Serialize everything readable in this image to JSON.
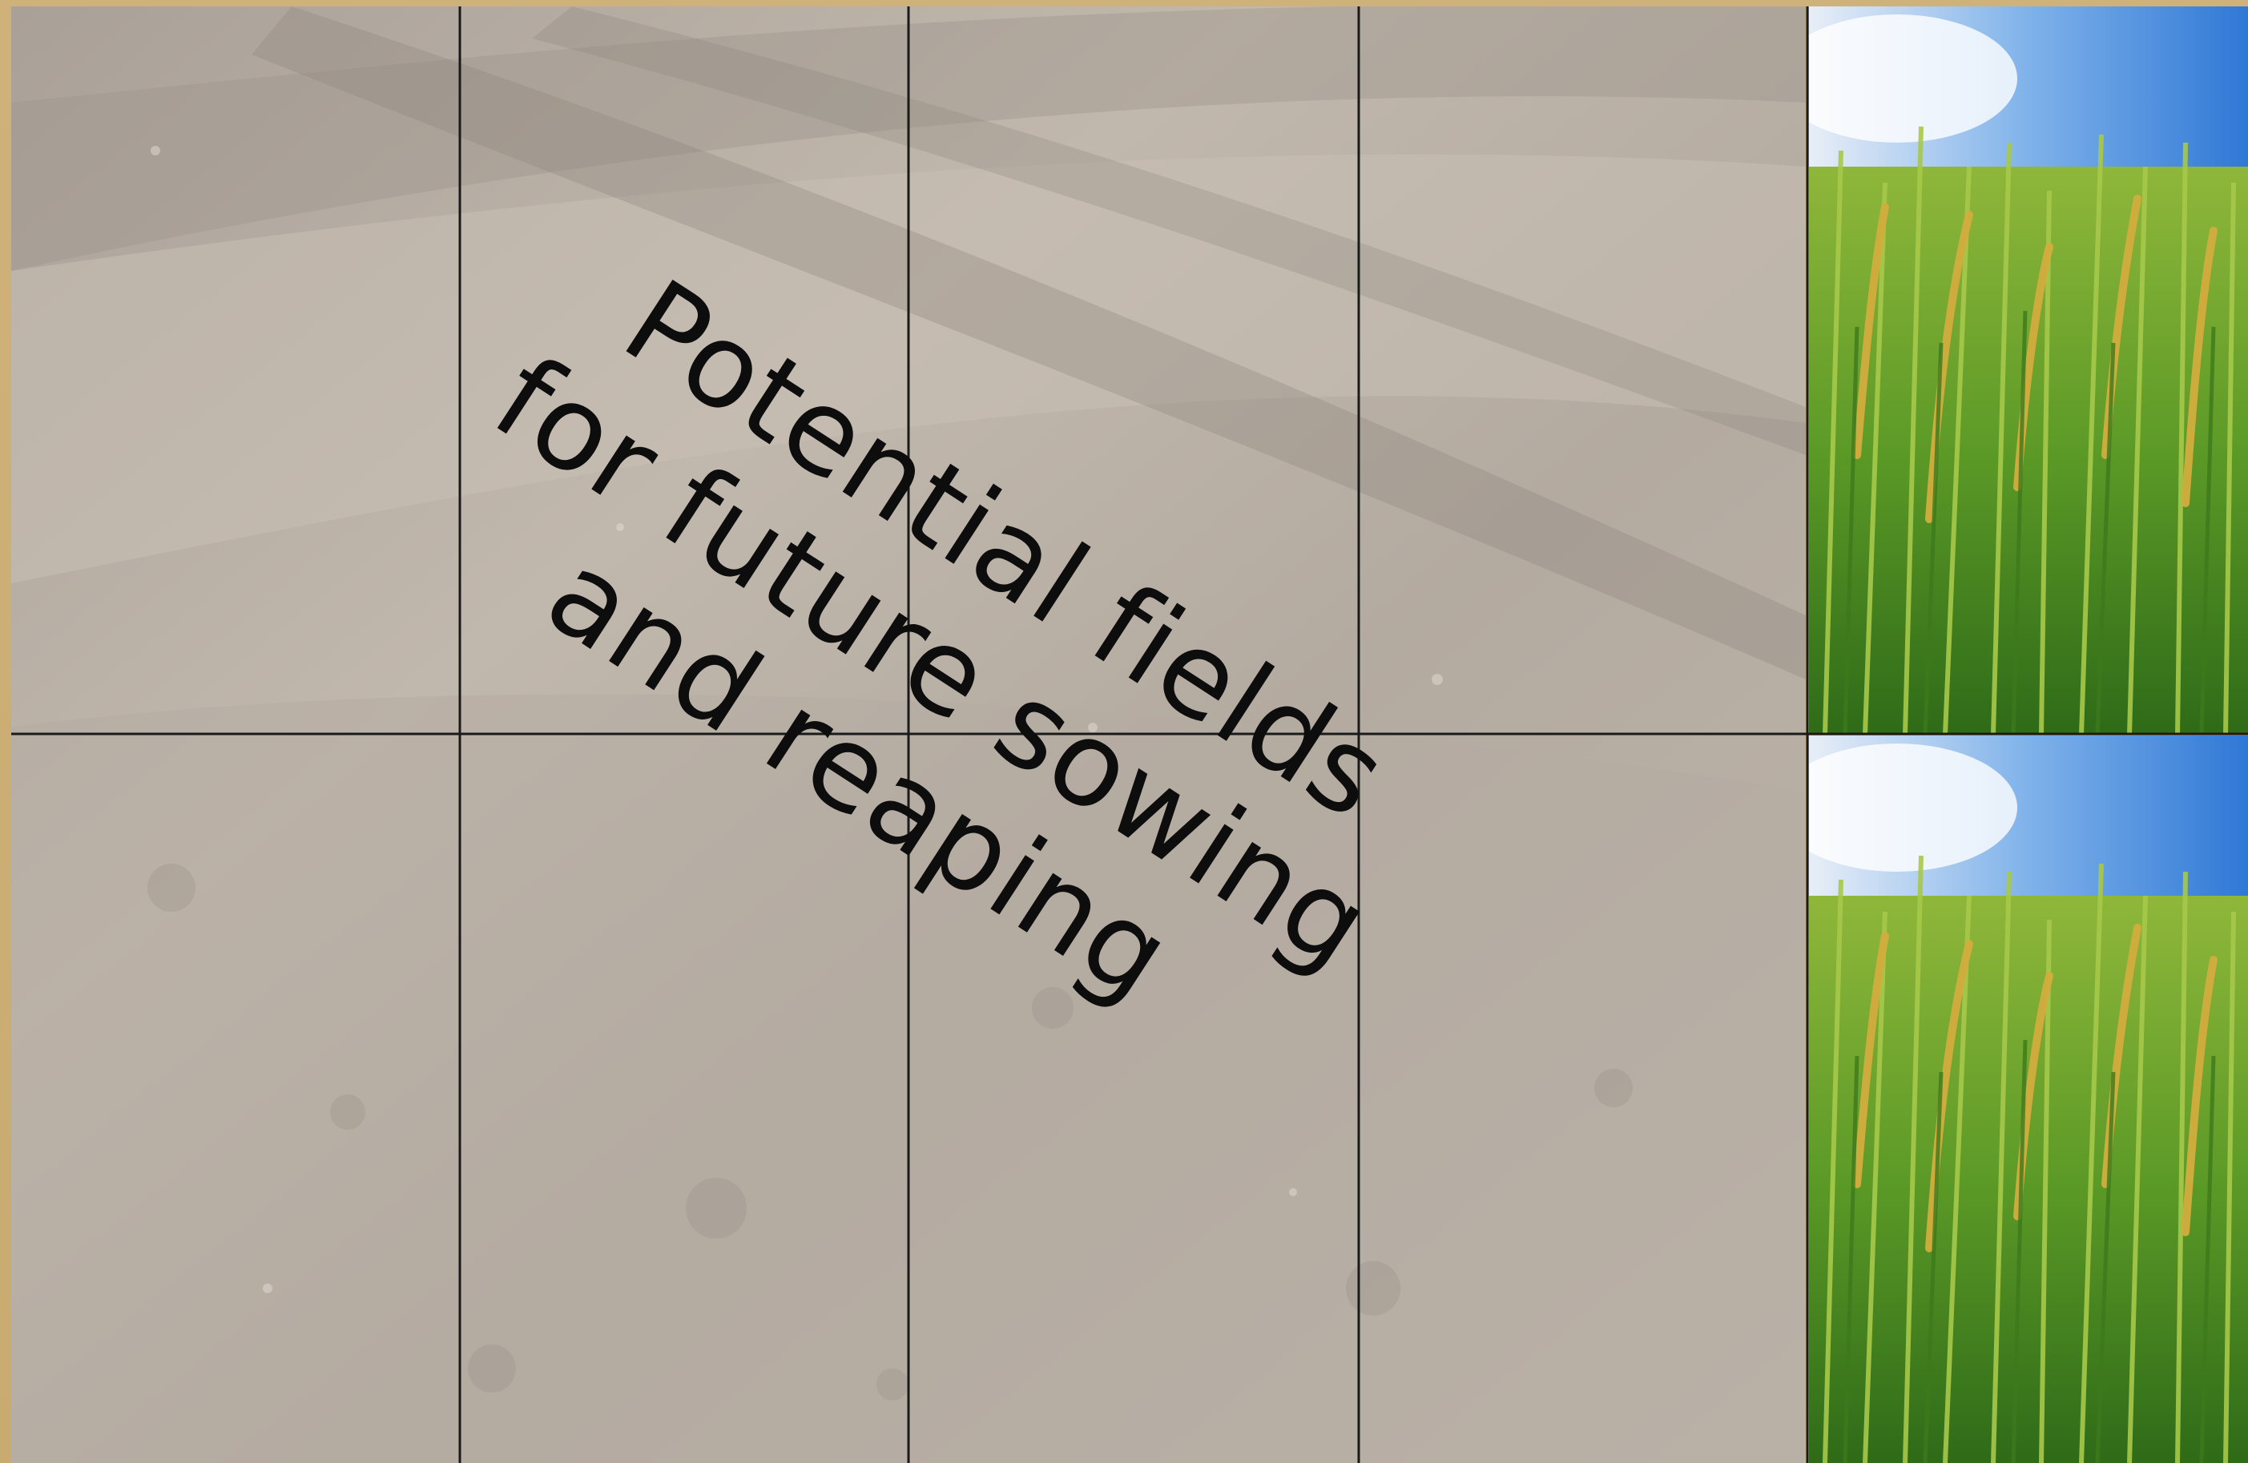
{
  "caption": {
    "line1": "Potential fields",
    "line2": "for future sowing",
    "line3": "and reaping"
  },
  "colors": {
    "frame": "#cdb27a",
    "soil": "#b9b0a6",
    "grid_line": "#1a1a1a",
    "grain_green": "#6fa531",
    "grain_gold": "#c9a23a",
    "sky": "#3f86d8",
    "text": "#0d0d0d"
  }
}
